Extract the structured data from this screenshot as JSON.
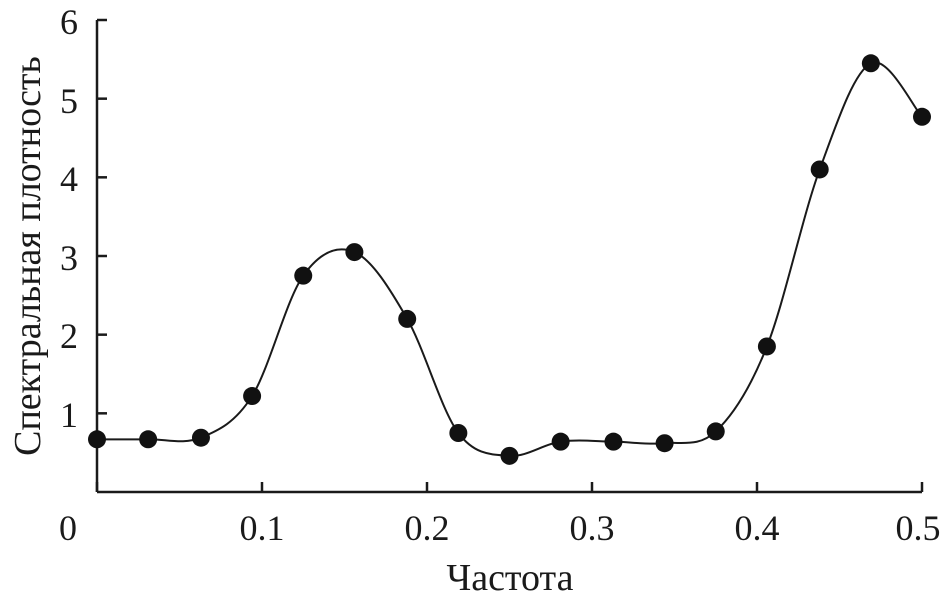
{
  "chart_data": {
    "type": "line",
    "title": "",
    "xlabel": "Частота",
    "ylabel": "Спектральная плотность",
    "xlim": [
      0,
      0.5
    ],
    "ylim": [
      0,
      6
    ],
    "x_ticks": [
      "0",
      "0.1",
      "0.2",
      "0.3",
      "0.4",
      "0.5"
    ],
    "y_ticks": [
      "1",
      "2",
      "3",
      "4",
      "5",
      "6"
    ],
    "grid": false,
    "legend": "none",
    "series": [
      {
        "x": [
          0,
          0.031,
          0.063,
          0.094,
          0.125,
          0.156,
          0.188,
          0.219,
          0.25,
          0.281,
          0.313,
          0.344,
          0.375,
          0.406,
          0.438,
          0.469,
          0.5
        ],
        "y": [
          0.67,
          0.67,
          0.69,
          1.22,
          2.75,
          3.05,
          2.2,
          0.75,
          0.46,
          0.64,
          0.64,
          0.62,
          0.77,
          1.85,
          4.1,
          5.45,
          4.77
        ]
      }
    ]
  }
}
